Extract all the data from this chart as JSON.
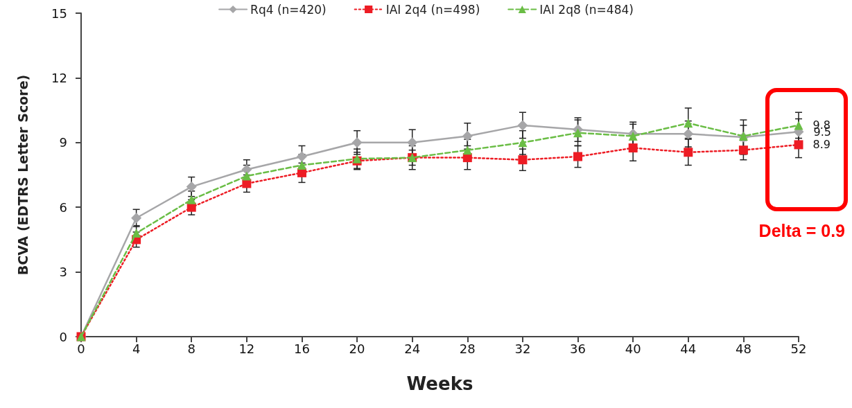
{
  "chart_data": {
    "type": "line",
    "xlabel": "Weeks",
    "ylabel": "BCVA (EDTRS Letter Score)",
    "x": [
      0,
      4,
      8,
      12,
      16,
      20,
      24,
      28,
      32,
      36,
      40,
      44,
      48,
      52
    ],
    "xlim": [
      0,
      52
    ],
    "xticks": [
      0,
      4,
      8,
      12,
      16,
      20,
      24,
      28,
      32,
      36,
      40,
      44,
      48,
      52
    ],
    "ylim": [
      0,
      15
    ],
    "yticks": [
      0,
      3,
      6,
      9,
      12,
      15
    ],
    "grid": false,
    "legend": "top",
    "series": [
      {
        "name": "Rq4 (n=420)",
        "color": "#a6a6a8",
        "marker": "diamond",
        "line_style": "solid",
        "values": [
          0,
          5.5,
          6.95,
          7.75,
          8.35,
          9.0,
          9.0,
          9.3,
          9.8,
          9.6,
          9.4,
          9.4,
          9.25,
          9.5
        ],
        "errors": [
          null,
          0.4,
          0.45,
          0.45,
          0.5,
          0.55,
          0.6,
          0.6,
          0.6,
          0.55,
          0.55,
          0.6,
          0.8,
          0.6
        ],
        "value_labels": [
          null,
          null,
          null,
          null,
          null,
          null,
          null,
          null,
          null,
          null,
          null,
          null,
          null,
          "9.5"
        ]
      },
      {
        "name": "IAI 2q4 (n=498)",
        "color": "#ed1c24",
        "marker": "square",
        "line_style": "dotted",
        "values": [
          0,
          4.5,
          6.0,
          7.1,
          7.6,
          8.15,
          8.3,
          8.3,
          8.2,
          8.35,
          8.75,
          8.55,
          8.65,
          8.9
        ],
        "errors": [
          null,
          0.35,
          0.35,
          0.4,
          0.45,
          0.4,
          0.55,
          0.55,
          0.5,
          0.5,
          0.6,
          0.6,
          0.45,
          0.6
        ],
        "value_labels": [
          null,
          null,
          null,
          null,
          null,
          null,
          null,
          null,
          null,
          null,
          null,
          null,
          null,
          "8.9"
        ]
      },
      {
        "name": "IAI 2q8 (n=484)",
        "color": "#6abd45",
        "marker": "triangle",
        "line_style": "dashed",
        "values": [
          0,
          4.8,
          6.35,
          7.45,
          7.95,
          8.25,
          8.3,
          8.65,
          9.0,
          9.45,
          9.3,
          9.9,
          9.3,
          9.8
        ],
        "errors": [
          null,
          0.35,
          0.4,
          0.5,
          0.5,
          0.45,
          0.35,
          0.5,
          0.55,
          0.6,
          0.55,
          0.7,
          0.5,
          0.6
        ],
        "value_labels": [
          null,
          null,
          null,
          null,
          null,
          null,
          null,
          null,
          null,
          null,
          null,
          null,
          null,
          "9.8"
        ]
      }
    ],
    "annotations": [
      "Delta = 0.9"
    ]
  }
}
